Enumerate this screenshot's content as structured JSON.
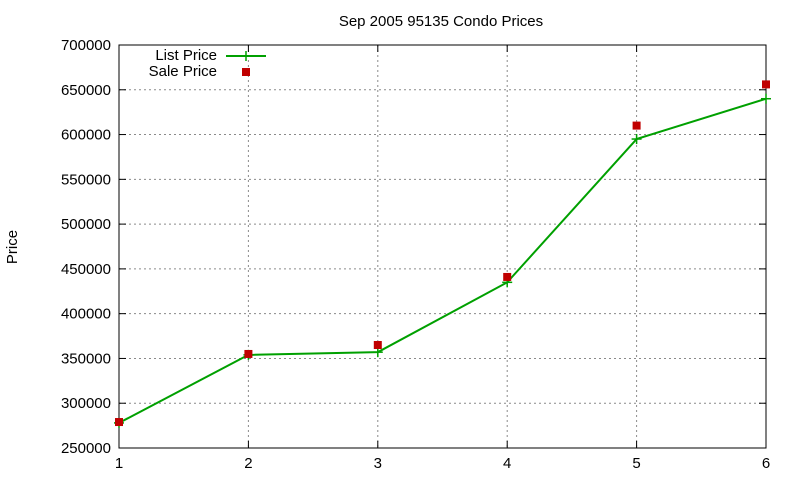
{
  "chart_data": {
    "type": "line",
    "title": "Sep 2005 95135 Condo Prices",
    "xlabel": "",
    "ylabel": "Price",
    "x": [
      1,
      2,
      3,
      4,
      5,
      6
    ],
    "xlim": [
      1,
      6
    ],
    "ylim": [
      250000,
      700000
    ],
    "xticks": [
      "1",
      "2",
      "3",
      "4",
      "5",
      "6"
    ],
    "yticks": [
      "250000",
      "300000",
      "350000",
      "400000",
      "450000",
      "500000",
      "550000",
      "600000",
      "650000",
      "700000"
    ],
    "grid": true,
    "legend_position": "top-left",
    "series": [
      {
        "name": "List Price",
        "style": "line+cross",
        "color": "#00a000",
        "values": [
          278000,
          354000,
          357000,
          435000,
          595000,
          640000
        ]
      },
      {
        "name": "Sale Price",
        "style": "square-points",
        "color": "#c00000",
        "values": [
          279000,
          355000,
          365000,
          441000,
          610000,
          656000
        ]
      }
    ]
  }
}
